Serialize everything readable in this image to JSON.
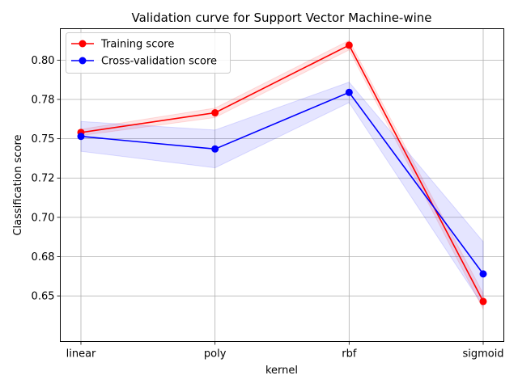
{
  "chart_data": {
    "type": "line",
    "title": "Validation curve for Support Vector Machine-wine",
    "xlabel": "kernel",
    "ylabel": "Classification score",
    "categories": [
      "linear",
      "poly",
      "rbf",
      "sigmoid"
    ],
    "ylim": [
      0.621,
      0.82
    ],
    "yticks": [
      0.65,
      0.675,
      0.7,
      0.725,
      0.75,
      0.775,
      0.8
    ],
    "ytick_labels": [
      "0.65",
      "0.68",
      "0.70",
      "0.72",
      "0.75",
      "0.78",
      "0.80"
    ],
    "grid": true,
    "legend_position": "top-left",
    "series": [
      {
        "name": "Training score",
        "color": "#ff0000",
        "values": [
          0.754,
          0.7665,
          0.8095,
          0.6465
        ],
        "std": [
          0.002,
          0.003,
          0.003,
          0.005
        ]
      },
      {
        "name": "Cross-validation score",
        "color": "#0000ff",
        "values": [
          0.7515,
          0.7435,
          0.7795,
          0.664
        ],
        "std": [
          0.0095,
          0.012,
          0.0065,
          0.0205
        ]
      }
    ]
  }
}
